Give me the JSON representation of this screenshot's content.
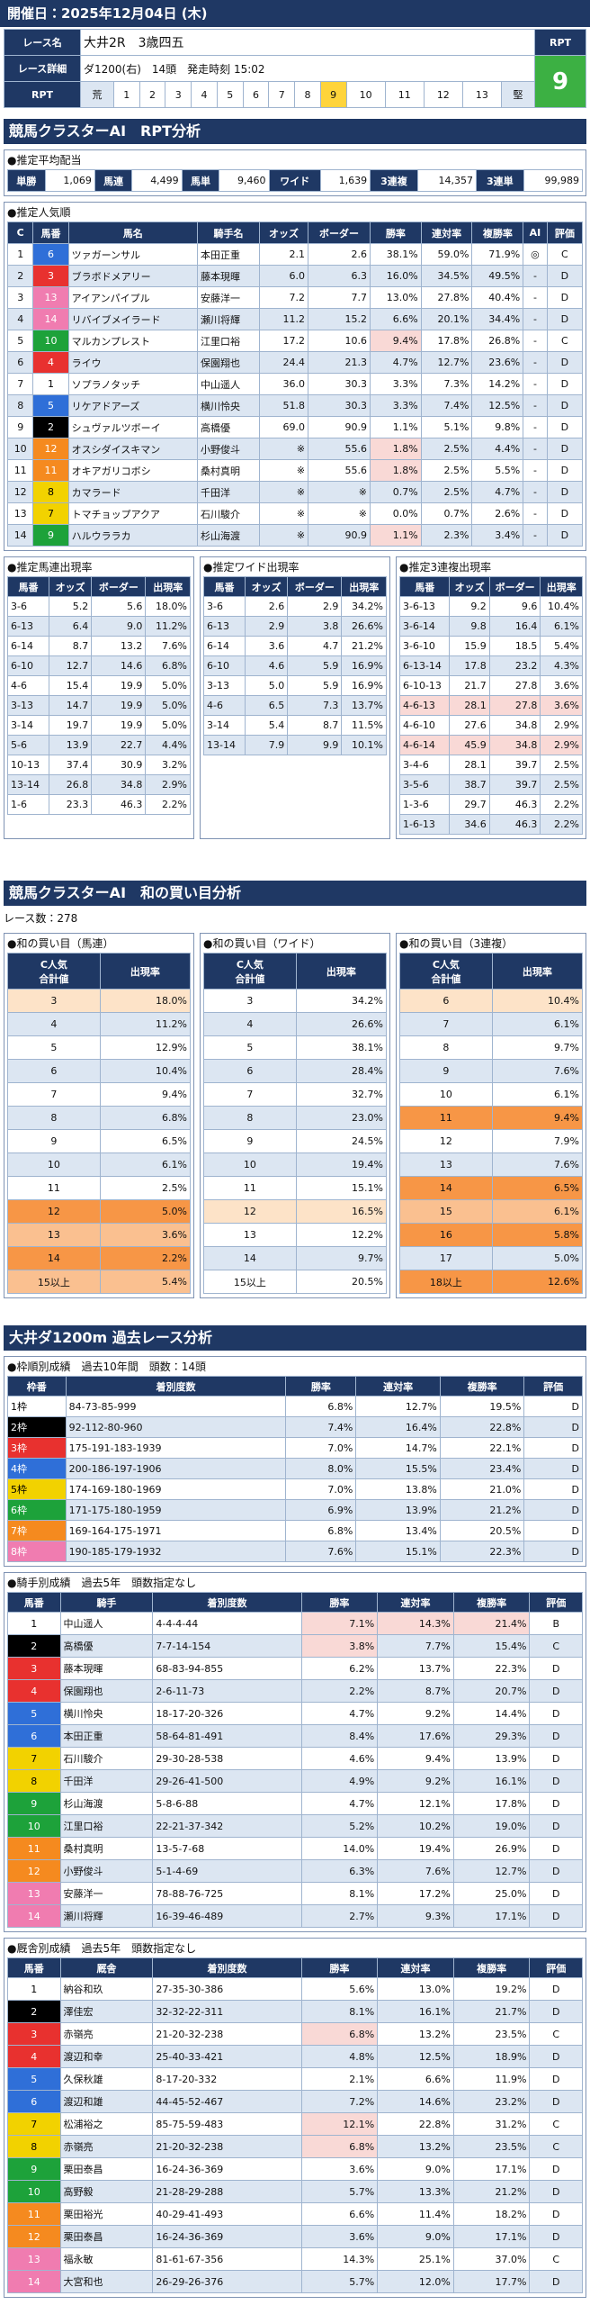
{
  "header": {
    "date": "開催日：2025年12月04日 (木)"
  },
  "race": {
    "name_label": "レース名",
    "name": "大井2R　3歳四五",
    "detail_label": "レース詳細",
    "detail": "ダ1200(右)　14頭　発走時刻 15:02",
    "rpt_label": "RPT",
    "rpt_value": "9",
    "scale_label": "RPT",
    "scale": [
      "荒",
      "1",
      "2",
      "3",
      "4",
      "5",
      "6",
      "7",
      "8",
      "9",
      "10",
      "11",
      "12",
      "13",
      "堅"
    ]
  },
  "section1": {
    "title": "競馬クラスターAI　RPT分析"
  },
  "payout": {
    "title": "●推定平均配当",
    "items": [
      [
        "単勝",
        "1,069"
      ],
      [
        "馬連",
        "4,499"
      ],
      [
        "馬単",
        "9,460"
      ],
      [
        "ワイド",
        "1,639"
      ],
      [
        "3連複",
        "14,357"
      ],
      [
        "3連単",
        "99,989"
      ]
    ]
  },
  "popularity": {
    "title": "●推定人気順",
    "columns": [
      "C",
      "馬番",
      "馬名",
      "騎手名",
      "オッズ",
      "ボーダー",
      "勝率",
      "連対率",
      "複勝率",
      "AI",
      "評価"
    ],
    "rows": [
      [
        "1",
        "6",
        "ツァガーンサル",
        "本田正重",
        "2.1",
        "2.6",
        "38.1%",
        "59.0%",
        "71.9%",
        "◎",
        "C"
      ],
      [
        "2",
        "3",
        "ブラボドメアリー",
        "藤本現暉",
        "6.0",
        "6.3",
        "16.0%",
        "34.5%",
        "49.5%",
        "-",
        "D"
      ],
      [
        "3",
        "13",
        "アイアンパイプル",
        "安藤洋一",
        "7.2",
        "7.7",
        "13.0%",
        "27.8%",
        "40.4%",
        "-",
        "D"
      ],
      [
        "4",
        "14",
        "リバイブメイラード",
        "瀬川将輝",
        "11.2",
        "15.2",
        "6.6%",
        "20.1%",
        "34.4%",
        "-",
        "D"
      ],
      [
        "5",
        "10",
        "マルカンプレスト",
        "江里口裕",
        "17.2",
        "10.6",
        "9.4%",
        "17.8%",
        "26.8%",
        "-",
        "C"
      ],
      [
        "6",
        "4",
        "ライウ",
        "保園翔也",
        "24.4",
        "21.3",
        "4.7%",
        "12.7%",
        "23.6%",
        "-",
        "D"
      ],
      [
        "7",
        "1",
        "ソプラノタッチ",
        "中山遥人",
        "36.0",
        "30.3",
        "3.3%",
        "7.3%",
        "14.2%",
        "-",
        "D"
      ],
      [
        "8",
        "5",
        "リケアドアーズ",
        "横川怜央",
        "51.8",
        "30.3",
        "3.3%",
        "7.4%",
        "12.5%",
        "-",
        "D"
      ],
      [
        "9",
        "2",
        "シュヴァルツボーイ",
        "高橋優",
        "69.0",
        "90.9",
        "1.1%",
        "5.1%",
        "9.8%",
        "-",
        "D"
      ],
      [
        "10",
        "12",
        "オスシダイスキマン",
        "小野俊斗",
        "※",
        "55.6",
        "1.8%",
        "2.5%",
        "4.4%",
        "-",
        "D"
      ],
      [
        "11",
        "11",
        "オキアガリコボシ",
        "桑村真明",
        "※",
        "55.6",
        "1.8%",
        "2.5%",
        "5.5%",
        "-",
        "D"
      ],
      [
        "12",
        "8",
        "カマラード",
        "千田洋",
        "※",
        "※",
        "0.7%",
        "2.5%",
        "4.7%",
        "-",
        "D"
      ],
      [
        "13",
        "7",
        "トマチョップアクア",
        "石川駿介",
        "※",
        "※",
        "0.0%",
        "0.7%",
        "2.6%",
        "-",
        "D"
      ],
      [
        "14",
        "9",
        "ハルウララカ",
        "杉山海渡",
        "※",
        "90.9",
        "1.1%",
        "2.3%",
        "3.4%",
        "-",
        "D"
      ]
    ]
  },
  "quinella": {
    "title": "●推定馬連出現率",
    "columns": [
      "馬番",
      "オッズ",
      "ボーダー",
      "出現率"
    ],
    "rows": [
      [
        "3-6",
        "5.2",
        "5.6",
        "18.0%"
      ],
      [
        "6-13",
        "6.4",
        "9.0",
        "11.2%"
      ],
      [
        "6-14",
        "8.7",
        "13.2",
        "7.6%"
      ],
      [
        "6-10",
        "12.7",
        "14.6",
        "6.8%"
      ],
      [
        "4-6",
        "15.4",
        "19.9",
        "5.0%"
      ],
      [
        "3-13",
        "14.7",
        "19.9",
        "5.0%"
      ],
      [
        "3-14",
        "19.7",
        "19.9",
        "5.0%"
      ],
      [
        "5-6",
        "13.9",
        "22.7",
        "4.4%"
      ],
      [
        "10-13",
        "37.4",
        "30.9",
        "3.2%"
      ],
      [
        "13-14",
        "26.8",
        "34.8",
        "2.9%"
      ],
      [
        "1-6",
        "23.3",
        "46.3",
        "2.2%"
      ]
    ]
  },
  "wide": {
    "title": "●推定ワイド出現率",
    "columns": [
      "馬番",
      "オッズ",
      "ボーダー",
      "出現率"
    ],
    "rows": [
      [
        "3-6",
        "2.6",
        "2.9",
        "34.2%"
      ],
      [
        "6-13",
        "2.9",
        "3.8",
        "26.6%"
      ],
      [
        "6-14",
        "3.6",
        "4.7",
        "21.2%"
      ],
      [
        "6-10",
        "4.6",
        "5.9",
        "16.9%"
      ],
      [
        "3-13",
        "5.0",
        "5.9",
        "16.9%"
      ],
      [
        "4-6",
        "6.5",
        "7.3",
        "13.7%"
      ],
      [
        "3-14",
        "5.4",
        "8.7",
        "11.5%"
      ],
      [
        "13-14",
        "7.9",
        "9.9",
        "10.1%"
      ]
    ]
  },
  "trio": {
    "title": "●推定3連複出現率",
    "columns": [
      "馬番",
      "オッズ",
      "ボーダー",
      "出現率"
    ],
    "rows": [
      [
        "3-6-13",
        "9.2",
        "9.6",
        "10.4%"
      ],
      [
        "3-6-14",
        "9.8",
        "16.4",
        "6.1%"
      ],
      [
        "3-6-10",
        "15.9",
        "18.5",
        "5.4%"
      ],
      [
        "6-13-14",
        "17.8",
        "23.2",
        "4.3%"
      ],
      [
        "6-10-13",
        "21.7",
        "27.8",
        "3.6%"
      ],
      [
        "4-6-13",
        "28.1",
        "27.8",
        "3.6%"
      ],
      [
        "4-6-10",
        "27.6",
        "34.8",
        "2.9%"
      ],
      [
        "4-6-14",
        "45.9",
        "34.8",
        "2.9%"
      ],
      [
        "3-4-6",
        "28.1",
        "39.7",
        "2.5%"
      ],
      [
        "3-5-6",
        "38.7",
        "39.7",
        "2.5%"
      ],
      [
        "1-3-6",
        "29.7",
        "46.3",
        "2.2%"
      ],
      [
        "1-6-13",
        "34.6",
        "46.3",
        "2.2%"
      ]
    ]
  },
  "section2": {
    "title": "競馬クラスターAI　和の買い目分析",
    "race_count": "レース数：278"
  },
  "sum_quinella": {
    "title": "●和の買い目（馬連）",
    "columns": [
      [
        "C人気",
        "合計値"
      ],
      "出現率"
    ],
    "rows": [
      [
        "3",
        "18.0%"
      ],
      [
        "4",
        "11.2%"
      ],
      [
        "5",
        "12.9%"
      ],
      [
        "6",
        "10.4%"
      ],
      [
        "7",
        "9.4%"
      ],
      [
        "8",
        "6.8%"
      ],
      [
        "9",
        "6.5%"
      ],
      [
        "10",
        "6.1%"
      ],
      [
        "11",
        "2.5%"
      ],
      [
        "12",
        "5.0%"
      ],
      [
        "13",
        "3.6%"
      ],
      [
        "14",
        "2.2%"
      ],
      [
        "15以上",
        "5.4%"
      ]
    ]
  },
  "sum_wide": {
    "title": "●和の買い目（ワイド）",
    "columns": [
      [
        "C人気",
        "合計値"
      ],
      "出現率"
    ],
    "rows": [
      [
        "3",
        "34.2%"
      ],
      [
        "4",
        "26.6%"
      ],
      [
        "5",
        "38.1%"
      ],
      [
        "6",
        "28.4%"
      ],
      [
        "7",
        "32.7%"
      ],
      [
        "8",
        "23.0%"
      ],
      [
        "9",
        "24.5%"
      ],
      [
        "10",
        "19.4%"
      ],
      [
        "11",
        "15.1%"
      ],
      [
        "12",
        "16.5%"
      ],
      [
        "13",
        "12.2%"
      ],
      [
        "14",
        "9.7%"
      ],
      [
        "15以上",
        "20.5%"
      ]
    ]
  },
  "sum_trio": {
    "title": "●和の買い目（3連複）",
    "columns": [
      [
        "C人気",
        "合計値"
      ],
      "出現率"
    ],
    "rows": [
      [
        "6",
        "10.4%"
      ],
      [
        "7",
        "6.1%"
      ],
      [
        "8",
        "9.7%"
      ],
      [
        "9",
        "7.6%"
      ],
      [
        "10",
        "6.1%"
      ],
      [
        "11",
        "9.4%"
      ],
      [
        "12",
        "7.9%"
      ],
      [
        "13",
        "7.6%"
      ],
      [
        "14",
        "6.5%"
      ],
      [
        "15",
        "6.1%"
      ],
      [
        "16",
        "5.8%"
      ],
      [
        "17",
        "5.0%"
      ],
      [
        "18以上",
        "12.6%"
      ]
    ]
  },
  "section3": {
    "title": "大井ダ1200m 過去レース分析"
  },
  "frame_stats": {
    "title": "●枠順別成績　過去10年間　頭数：14頭",
    "columns": [
      "枠番",
      "着別度数",
      "勝率",
      "連対率",
      "複勝率",
      "評価"
    ],
    "rows": [
      [
        "1枠",
        "84-73-85-999",
        "6.8%",
        "12.7%",
        "19.5%",
        "D"
      ],
      [
        "2枠",
        "92-112-80-960",
        "7.4%",
        "16.4%",
        "22.8%",
        "D"
      ],
      [
        "3枠",
        "175-191-183-1939",
        "7.0%",
        "14.7%",
        "22.1%",
        "D"
      ],
      [
        "4枠",
        "200-186-197-1906",
        "8.0%",
        "15.5%",
        "23.4%",
        "D"
      ],
      [
        "5枠",
        "174-169-180-1969",
        "7.0%",
        "13.8%",
        "21.0%",
        "D"
      ],
      [
        "6枠",
        "171-175-180-1959",
        "6.9%",
        "13.9%",
        "21.2%",
        "D"
      ],
      [
        "7枠",
        "169-164-175-1971",
        "6.8%",
        "13.4%",
        "20.5%",
        "D"
      ],
      [
        "8枠",
        "190-185-179-1932",
        "7.6%",
        "15.1%",
        "22.3%",
        "D"
      ]
    ]
  },
  "jockey_stats": {
    "title": "●騎手別成績　過去5年　頭数指定なし",
    "columns": [
      "馬番",
      "騎手",
      "着別度数",
      "勝率",
      "連対率",
      "複勝率",
      "評価"
    ],
    "rows": [
      [
        "1",
        "中山遥人",
        "4-4-4-44",
        "7.1%",
        "14.3%",
        "21.4%",
        "B"
      ],
      [
        "2",
        "高橋優",
        "7-7-14-154",
        "3.8%",
        "7.7%",
        "15.4%",
        "C"
      ],
      [
        "3",
        "藤本現暉",
        "68-83-94-855",
        "6.2%",
        "13.7%",
        "22.3%",
        "D"
      ],
      [
        "4",
        "保園翔也",
        "2-6-11-73",
        "2.2%",
        "8.7%",
        "20.7%",
        "D"
      ],
      [
        "5",
        "横川怜央",
        "18-17-20-326",
        "4.7%",
        "9.2%",
        "14.4%",
        "D"
      ],
      [
        "6",
        "本田正重",
        "58-64-81-491",
        "8.4%",
        "17.6%",
        "29.3%",
        "D"
      ],
      [
        "7",
        "石川駿介",
        "29-30-28-538",
        "4.6%",
        "9.4%",
        "13.9%",
        "D"
      ],
      [
        "8",
        "千田洋",
        "29-26-41-500",
        "4.9%",
        "9.2%",
        "16.1%",
        "D"
      ],
      [
        "9",
        "杉山海渡",
        "5-8-6-88",
        "4.7%",
        "12.1%",
        "17.8%",
        "D"
      ],
      [
        "10",
        "江里口裕",
        "22-21-37-342",
        "5.2%",
        "10.2%",
        "19.0%",
        "D"
      ],
      [
        "11",
        "桑村真明",
        "13-5-7-68",
        "14.0%",
        "19.4%",
        "26.9%",
        "D"
      ],
      [
        "12",
        "小野俊斗",
        "5-1-4-69",
        "6.3%",
        "7.6%",
        "12.7%",
        "D"
      ],
      [
        "13",
        "安藤洋一",
        "78-88-76-725",
        "8.1%",
        "17.2%",
        "25.0%",
        "D"
      ],
      [
        "14",
        "瀬川将輝",
        "16-39-46-489",
        "2.7%",
        "9.3%",
        "17.1%",
        "D"
      ]
    ]
  },
  "stable_stats": {
    "title": "●厩舎別成績　過去5年　頭数指定なし",
    "columns": [
      "馬番",
      "厩舎",
      "着別度数",
      "勝率",
      "連対率",
      "複勝率",
      "評価"
    ],
    "rows": [
      [
        "1",
        "納谷和玖",
        "27-35-30-386",
        "5.6%",
        "13.0%",
        "19.2%",
        "D"
      ],
      [
        "2",
        "澤佳宏",
        "32-32-22-311",
        "8.1%",
        "16.1%",
        "21.7%",
        "D"
      ],
      [
        "3",
        "赤嶺亮",
        "21-20-32-238",
        "6.8%",
        "13.2%",
        "23.5%",
        "C"
      ],
      [
        "4",
        "渡辺和幸",
        "25-40-33-421",
        "4.8%",
        "12.5%",
        "18.9%",
        "D"
      ],
      [
        "5",
        "久保秋雄",
        "8-17-20-332",
        "2.1%",
        "6.6%",
        "11.9%",
        "D"
      ],
      [
        "6",
        "渡辺和雄",
        "44-45-52-467",
        "7.2%",
        "14.6%",
        "23.2%",
        "D"
      ],
      [
        "7",
        "松浦裕之",
        "85-75-59-483",
        "12.1%",
        "22.8%",
        "31.2%",
        "C"
      ],
      [
        "8",
        "赤嶺亮",
        "21-20-32-238",
        "6.8%",
        "13.2%",
        "23.5%",
        "C"
      ],
      [
        "9",
        "栗田泰昌",
        "16-24-36-369",
        "3.6%",
        "9.0%",
        "17.1%",
        "D"
      ],
      [
        "10",
        "高野毅",
        "21-28-29-288",
        "5.7%",
        "13.3%",
        "21.2%",
        "D"
      ],
      [
        "11",
        "栗田裕光",
        "40-29-41-493",
        "6.6%",
        "11.4%",
        "18.2%",
        "D"
      ],
      [
        "12",
        "栗田泰昌",
        "16-24-36-369",
        "3.6%",
        "9.0%",
        "17.1%",
        "D"
      ],
      [
        "13",
        "福永敏",
        "81-61-67-356",
        "14.3%",
        "25.1%",
        "37.0%",
        "C"
      ],
      [
        "14",
        "大宮和也",
        "26-29-26-376",
        "5.7%",
        "12.0%",
        "17.7%",
        "D"
      ]
    ]
  }
}
